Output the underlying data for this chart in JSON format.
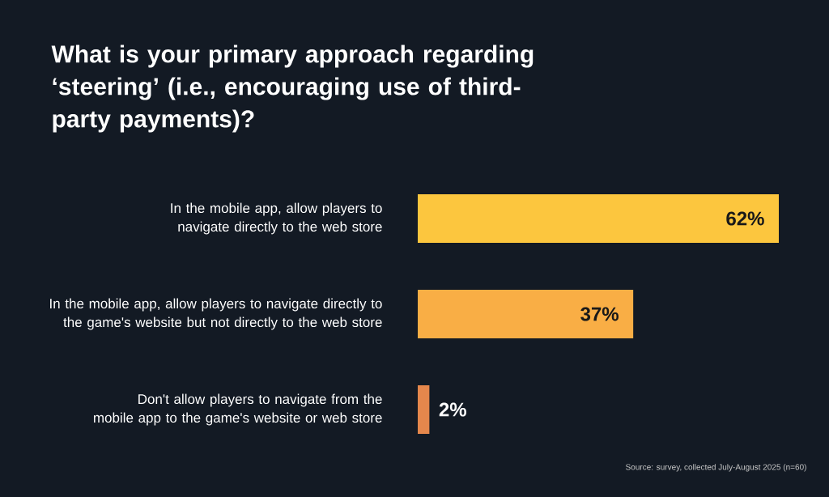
{
  "chart_data": {
    "type": "bar",
    "orientation": "horizontal",
    "title": "What is your primary approach regarding ‘steering’ (i.e., encouraging use of third-party payments)?",
    "categories": [
      "In the mobile app, allow players to navigate directly to the web store",
      "In the mobile app, allow players to navigate directly to the game's website but not directly to the web store",
      "Don't allow players to navigate from the mobile app to the game's website or web store"
    ],
    "values": [
      62,
      37,
      2
    ],
    "colors": [
      "#fcc63e",
      "#f9ae45",
      "#e5874c"
    ],
    "value_labels": [
      "62%",
      "37%",
      "2%"
    ],
    "annotations": [
      "Source: survey, collected July-August 2025 (n=60)"
    ]
  }
}
